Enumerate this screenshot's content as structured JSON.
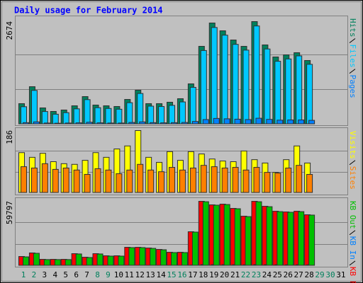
{
  "chart_data": [
    {
      "type": "bar",
      "title": "Daily usage for February 2014",
      "ylim": [
        0,
        2674
      ],
      "yticks": [
        2674
      ],
      "series": [
        {
          "name": "Hits",
          "color": "#00805c",
          "values": [
            535,
            977,
            424,
            332,
            369,
            479,
            719,
            498,
            479,
            461,
            645,
            885,
            535,
            535,
            572,
            664,
            1051,
            2029,
            2637,
            2434,
            2194,
            2029,
            2674,
            2066,
            1752,
            1807,
            1863,
            1660,
            null,
            null,
            null
          ]
        },
        {
          "name": "Files",
          "color": "#00c8ff",
          "values": [
            455,
            880,
            330,
            260,
            300,
            400,
            640,
            430,
            410,
            390,
            560,
            800,
            470,
            460,
            490,
            580,
            960,
            1920,
            2520,
            2320,
            2080,
            1930,
            2560,
            1960,
            1640,
            1700,
            1780,
            1560,
            null,
            null,
            null
          ]
        },
        {
          "name": "Pages",
          "color": "#0080ff",
          "values": [
            40,
            60,
            30,
            25,
            30,
            35,
            50,
            35,
            30,
            30,
            45,
            60,
            40,
            35,
            40,
            45,
            70,
            120,
            150,
            140,
            130,
            120,
            155,
            125,
            105,
            110,
            110,
            100,
            null,
            null,
            null
          ]
        }
      ]
    },
    {
      "type": "bar",
      "ylim": [
        0,
        186
      ],
      "yticks": [
        186
      ],
      "series": [
        {
          "name": "Visits",
          "color": "#ffff00",
          "values": [
            120,
            106,
            118,
            93,
            87,
            85,
            97,
            120,
            106,
            131,
            140,
            186,
            106,
            91,
            123,
            97,
            123,
            116,
            101,
            95,
            93,
            125,
            99,
            89,
            61,
            99,
            140,
            89,
            null,
            null,
            null
          ]
        },
        {
          "name": "Sites",
          "color": "#ff8000",
          "values": [
            78,
            74,
            87,
            70,
            74,
            68,
            55,
            72,
            68,
            57,
            68,
            85,
            68,
            63,
            76,
            68,
            74,
            82,
            78,
            74,
            76,
            68,
            76,
            61,
            59,
            74,
            82,
            55,
            null,
            null,
            null
          ]
        }
      ]
    },
    {
      "type": "bar",
      "ylim": [
        0,
        59797
      ],
      "yticks": [
        59797
      ],
      "categories": [
        "1",
        "2",
        "3",
        "4",
        "5",
        "6",
        "7",
        "8",
        "9",
        "10",
        "11",
        "12",
        "13",
        "14",
        "15",
        "16",
        "17",
        "18",
        "19",
        "20",
        "21",
        "22",
        "23",
        "24",
        "25",
        "26",
        "27",
        "28",
        "29",
        "30",
        "31"
      ],
      "category_colors": [
        "#00805c",
        "#00805c",
        "#000000",
        "#000000",
        "#000000",
        "#000000",
        "#000000",
        "#00805c",
        "#00805c",
        "#000000",
        "#000000",
        "#000000",
        "#000000",
        "#000000",
        "#00805c",
        "#00805c",
        "#000000",
        "#000000",
        "#000000",
        "#000000",
        "#000000",
        "#00805c",
        "#00805c",
        "#000000",
        "#000000",
        "#000000",
        "#000000",
        "#000000",
        "#00805c",
        "#00805c",
        "#000000"
      ],
      "series": [
        {
          "name": "KB Out",
          "color": "#00c000",
          "values": [
            8200,
            11500,
            5700,
            5700,
            5700,
            10900,
            7600,
            10900,
            8900,
            8900,
            16800,
            16800,
            16100,
            14800,
            12200,
            12200,
            31200,
            59400,
            56200,
            56800,
            52900,
            45600,
            59400,
            54800,
            50200,
            49600,
            50200,
            47000,
            null,
            null,
            null
          ]
        },
        {
          "name": "KB In",
          "color": "#0080ff",
          "values": [
            200,
            250,
            150,
            150,
            150,
            240,
            180,
            240,
            200,
            200,
            330,
            330,
            320,
            300,
            260,
            260,
            560,
            1000,
            950,
            960,
            900,
            800,
            1000,
            930,
            860,
            850,
            860,
            810,
            null,
            null,
            null
          ]
        },
        {
          "name": "KB F",
          "color": "#ff0000",
          "values": [
            8542,
            11827,
            5913,
            5913,
            5913,
            11170,
            7884,
            11170,
            9198,
            9198,
            17082,
            17082,
            16425,
            15111,
            12483,
            12483,
            31536,
            59797,
            56502,
            57159,
            53217,
            45990,
            59797,
            55188,
            50589,
            49932,
            50589,
            47304,
            null,
            null,
            null
          ]
        }
      ]
    }
  ]
}
